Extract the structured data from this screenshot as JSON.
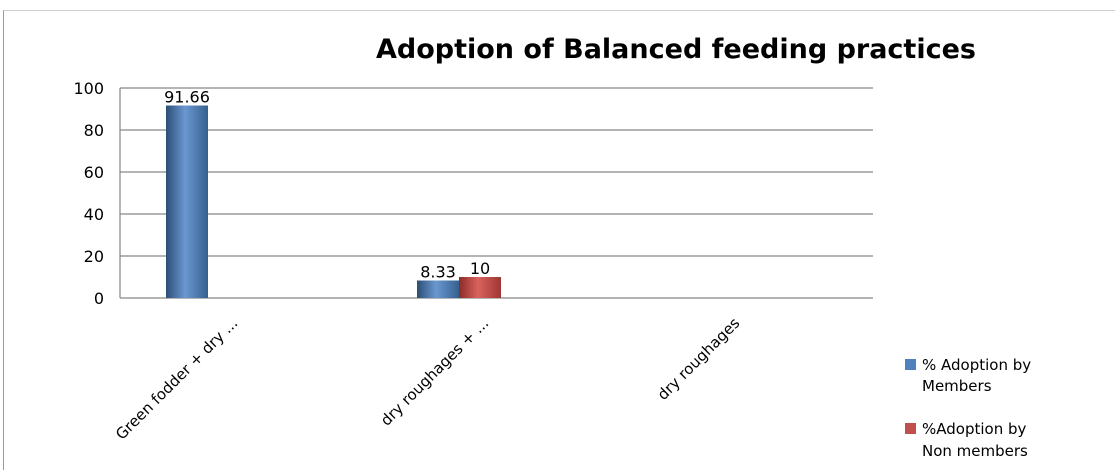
{
  "chart_data": {
    "type": "bar",
    "title": "Adoption of Balanced feeding practices",
    "categories": [
      "Green fodder + dry ...",
      "dry roughages + ...",
      "dry roughages"
    ],
    "series": [
      {
        "name": "% Adoption by Members",
        "values": [
          91.66,
          8.33,
          null
        ],
        "color": "#4f81bd",
        "labels": [
          "91.66",
          "8.33",
          ""
        ]
      },
      {
        "name": "%Adoption by Non members",
        "values": [
          null,
          10,
          null
        ],
        "color": "#c0504d",
        "labels": [
          "",
          "10",
          ""
        ]
      }
    ],
    "ylim": [
      0,
      100
    ],
    "yticks": [
      0,
      20,
      40,
      60,
      80,
      100
    ],
    "grid": true,
    "legend_position": "right"
  },
  "legend": {
    "members_line1": "% Adoption by",
    "members_line2": "Members",
    "nonmembers_line1": "%Adoption by",
    "nonmembers_line2": "Non members"
  }
}
